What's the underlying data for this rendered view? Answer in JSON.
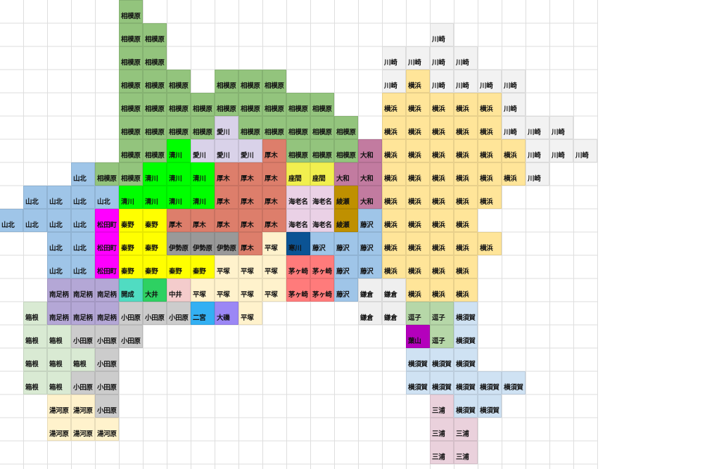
{
  "grid": {
    "rows": [
      [
        "",
        "",
        "",
        "",
        "",
        "相模原"
      ],
      [
        "",
        "",
        "",
        "",
        "",
        "相模原",
        "相模原",
        "",
        "",
        "",
        "",
        "",
        "",
        "",
        "",
        "",
        "",
        "",
        "川崎"
      ],
      [
        "",
        "",
        "",
        "",
        "",
        "相模原",
        "相模原",
        "",
        "",
        "",
        "",
        "",
        "",
        "",
        "",
        "",
        "川崎",
        "川崎",
        "川崎",
        "川崎"
      ],
      [
        "",
        "",
        "",
        "",
        "",
        "相模原",
        "相模原",
        "相模原",
        "",
        "相模原",
        "相模原",
        "相模原",
        "",
        "",
        "",
        "",
        "川崎",
        "横浜",
        "川崎",
        "川崎",
        "川崎",
        "川崎"
      ],
      [
        "",
        "",
        "",
        "",
        "",
        "相模原",
        "相模原",
        "相模原",
        "相模原",
        "相模原",
        "相模原",
        "相模原",
        "相模原",
        "相模原",
        "",
        "",
        "横浜",
        "横浜",
        "横浜",
        "横浜",
        "横浜",
        "川崎"
      ],
      [
        "",
        "",
        "",
        "",
        "",
        "相模原",
        "相模原",
        "相模原",
        "相模原",
        "愛川",
        "相模原",
        "相模原",
        "相模原",
        "相模原",
        "相模原",
        "",
        "横浜",
        "横浜",
        "横浜",
        "横浜",
        "横浜",
        "川崎",
        "川崎",
        "川崎"
      ],
      [
        "",
        "",
        "",
        "",
        "",
        "相模原",
        "相模原",
        "清川",
        "愛川",
        "愛川",
        "愛川",
        "厚木",
        "相模原",
        "相模原",
        "相模原",
        "大和",
        "横浜",
        "横浜",
        "横浜",
        "横浜",
        "横浜",
        "横浜",
        "川崎",
        "川崎",
        "川崎"
      ],
      [
        "",
        "",
        "",
        "山北",
        "相模原",
        "相模原",
        "清川",
        "清川",
        "清川",
        "厚木",
        "厚木",
        "厚木",
        "座間",
        "座間",
        "大和",
        "大和",
        "横浜",
        "横浜",
        "横浜",
        "横浜",
        "横浜",
        "横浜",
        "川崎"
      ],
      [
        "",
        "山北",
        "山北",
        "山北",
        "山北",
        "清川",
        "清川",
        "清川",
        "清川",
        "厚木",
        "厚木",
        "厚木",
        "海老名",
        "海老名",
        "綾瀬",
        "大和",
        "横浜",
        "横浜",
        "横浜",
        "横浜",
        "横浜"
      ],
      [
        "山北",
        "山北",
        "山北",
        "山北",
        "松田町",
        "秦野",
        "秦野",
        "厚木",
        "厚木",
        "厚木",
        "厚木",
        "厚木",
        "海老名",
        "海老名",
        "綾瀬",
        "藤沢",
        "横浜",
        "横浜",
        "横浜",
        "横浜"
      ],
      [
        "",
        "",
        "山北",
        "山北",
        "松田町",
        "秦野",
        "秦野",
        "伊勢原",
        "伊勢原",
        "伊勢原",
        "厚木",
        "平塚",
        "寒川",
        "藤沢",
        "藤沢",
        "藤沢",
        "横浜",
        "横浜",
        "横浜",
        "横浜",
        "横浜"
      ],
      [
        "",
        "",
        "山北",
        "山北",
        "松田町",
        "秦野",
        "秦野",
        "秦野",
        "秦野",
        "平塚",
        "平塚",
        "平塚",
        "茅ヶ崎",
        "茅ヶ崎",
        "藤沢",
        "藤沢",
        "横浜",
        "横浜",
        "横浜",
        "横浜"
      ],
      [
        "",
        "",
        "南足柄",
        "南足柄",
        "南足柄",
        "開成",
        "大井",
        "中井",
        "平塚",
        "平塚",
        "平塚",
        "平塚",
        "茅ヶ崎",
        "茅ヶ崎",
        "藤沢",
        "鎌倉",
        "鎌倉",
        "横浜",
        "横浜",
        "横浜"
      ],
      [
        "",
        "箱根",
        "南足柄",
        "南足柄",
        "南足柄",
        "小田原",
        "小田原",
        "小田原",
        "二宮",
        "大磯",
        "平塚",
        "",
        "",
        "",
        "",
        "鎌倉",
        "鎌倉",
        "逗子",
        "逗子",
        "横須賀"
      ],
      [
        "",
        "箱根",
        "箱根",
        "小田原",
        "小田原",
        "小田原",
        "",
        "",
        "",
        "",
        "",
        "",
        "",
        "",
        "",
        "",
        "",
        "葉山",
        "逗子",
        "横須賀"
      ],
      [
        "",
        "箱根",
        "箱根",
        "箱根",
        "小田原",
        "",
        "",
        "",
        "",
        "",
        "",
        "",
        "",
        "",
        "",
        "",
        "",
        "横須賀",
        "横須賀",
        "横須賀"
      ],
      [
        "",
        "箱根",
        "箱根",
        "小田原",
        "小田原",
        "",
        "",
        "",
        "",
        "",
        "",
        "",
        "",
        "",
        "",
        "",
        "",
        "横須賀",
        "横須賀",
        "横須賀",
        "横須賀",
        "横須賀"
      ],
      [
        "",
        "",
        "湯河原",
        "湯河原",
        "小田原",
        "",
        "",
        "",
        "",
        "",
        "",
        "",
        "",
        "",
        "",
        "",
        "",
        "",
        "三浦",
        "横須賀",
        "横須賀"
      ],
      [
        "",
        "",
        "湯河原",
        "湯河原",
        "湯河原",
        "",
        "",
        "",
        "",
        "",
        "",
        "",
        "",
        "",
        "",
        "",
        "",
        "",
        "三浦",
        "三浦"
      ],
      [
        "",
        "",
        "",
        "",
        "",
        "",
        "",
        "",
        "",
        "",
        "",
        "",
        "",
        "",
        "",
        "",
        "",
        "",
        "三浦",
        "三浦"
      ]
    ]
  },
  "colors": {
    "相模原": "#93c47d",
    "川崎": "#f2f2f2",
    "横浜": "#ffe599",
    "愛川": "#d9d2e9",
    "清川": "#00ff00",
    "厚木": "#dd7e6b",
    "大和": "#c27ba0",
    "座間": "#f1ef4f",
    "山北": "#9fc5e8",
    "海老名": "#ead1e6",
    "綾瀬": "#bf9000",
    "松田町": "#ff00ff",
    "秦野": "#ffff00",
    "伊勢原": "#999999",
    "平塚": "#fff2cc",
    "寒川": "#0b5394",
    "藤沢": "#9fc5e8",
    "茅ヶ崎": "#ff7b7b",
    "南足柄": "#b4a7d6",
    "開成": "#50dcc2",
    "大井": "#2ed162",
    "中井": "#f4cccc",
    "小田原": "#cccccc",
    "二宮": "#33b0f3",
    "大磯": "#9b87f5",
    "箱根": "#d9ead3",
    "湯河原": "#fff2cc",
    "鎌倉": "#efefef",
    "逗子": "#b6d7a8",
    "横須賀": "#cfe2f3",
    "葉山": "#b400bc",
    "三浦": "#ead1dc"
  }
}
